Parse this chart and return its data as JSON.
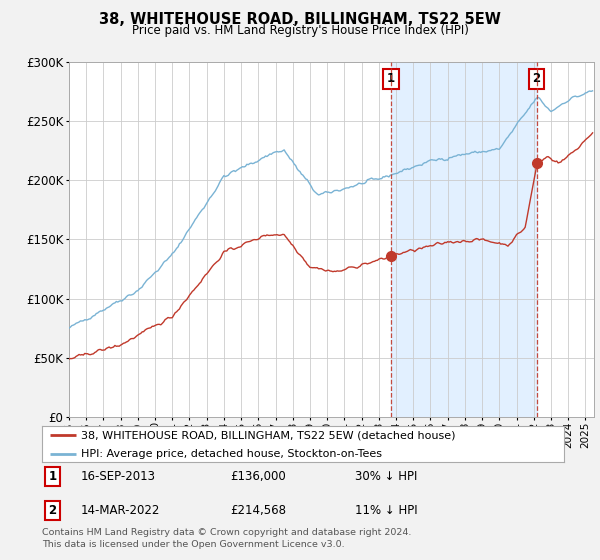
{
  "title": "38, WHITEHOUSE ROAD, BILLINGHAM, TS22 5EW",
  "subtitle": "Price paid vs. HM Land Registry's House Price Index (HPI)",
  "footer": "Contains HM Land Registry data © Crown copyright and database right 2024.\nThis data is licensed under the Open Government Licence v3.0.",
  "legend_line1": "38, WHITEHOUSE ROAD, BILLINGHAM, TS22 5EW (detached house)",
  "legend_line2": "HPI: Average price, detached house, Stockton-on-Tees",
  "annotation1_date": "16-SEP-2013",
  "annotation1_price": "£136,000",
  "annotation1_hpi": "30% ↓ HPI",
  "annotation2_date": "14-MAR-2022",
  "annotation2_price": "£214,568",
  "annotation2_hpi": "11% ↓ HPI",
  "hpi_color": "#7ab3d4",
  "price_color": "#c0392b",
  "shade_color": "#ddeeff",
  "ylim": [
    0,
    300000
  ],
  "yticks": [
    0,
    50000,
    100000,
    150000,
    200000,
    250000,
    300000
  ],
  "ytick_labels": [
    "£0",
    "£50K",
    "£100K",
    "£150K",
    "£200K",
    "£250K",
    "£300K"
  ],
  "background_color": "#f2f2f2",
  "plot_bg_color": "#ffffff",
  "ann1_x": 2013.71,
  "ann1_y": 136000,
  "ann2_x": 2022.17,
  "ann2_y": 214568,
  "xmin": 1995.0,
  "xmax": 2025.5
}
